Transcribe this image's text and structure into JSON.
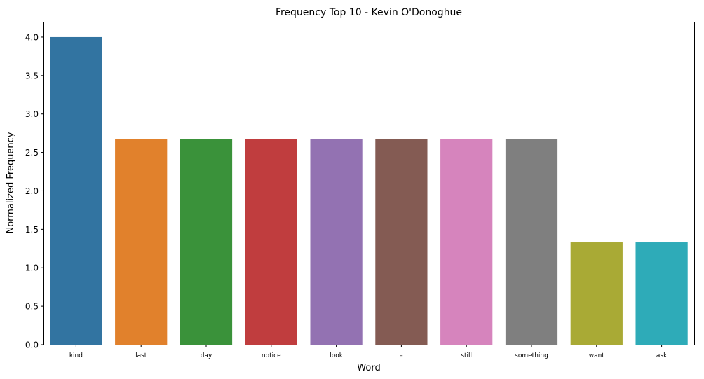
{
  "chart_data": {
    "type": "bar",
    "title": "Frequency Top 10 - Kevin O'Donoghue",
    "xlabel": "Word",
    "ylabel": "Normalized Frequency",
    "categories": [
      "kind",
      "last",
      "day",
      "notice",
      "look",
      "–",
      "still",
      "something",
      "want",
      "ask"
    ],
    "values": [
      4.0,
      2.67,
      2.67,
      2.67,
      2.67,
      2.67,
      2.67,
      2.67,
      1.33,
      1.33
    ],
    "colors": [
      "#3274a1",
      "#e1812c",
      "#3a923a",
      "#c03d3e",
      "#9372b2",
      "#845b53",
      "#d684bd",
      "#7f7f7f",
      "#a9aa35",
      "#2eabb8"
    ],
    "ylim": [
      0,
      4.2
    ],
    "yticks": [
      "0.0",
      "0.5",
      "1.0",
      "1.5",
      "2.0",
      "2.5",
      "3.0",
      "3.5",
      "4.0"
    ],
    "grid": false,
    "legend": "none"
  }
}
